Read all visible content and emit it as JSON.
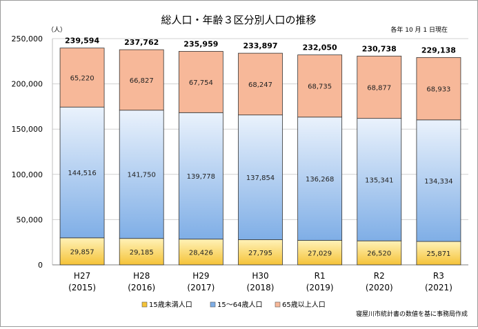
{
  "chart_data": {
    "type": "bar",
    "stacked": true,
    "title": "総人口・年齢３区分別人口の推移",
    "date_note": "各年 10 月 1 日現在",
    "y_unit": "（人）",
    "source_note": "寝屋川市統計書の数値を基に事務局作成",
    "ylim": [
      0,
      250000
    ],
    "y_ticks": [
      0,
      50000,
      100000,
      150000,
      200000,
      250000
    ],
    "y_tick_labels": [
      "0",
      "50,000",
      "100,000",
      "150,000",
      "200,000",
      "250,000"
    ],
    "grid": true,
    "legend_position": "bottom",
    "categories": [
      {
        "label": "H27",
        "year": "(2015)"
      },
      {
        "label": "H28",
        "year": "(2016)"
      },
      {
        "label": "H29",
        "year": "(2017)"
      },
      {
        "label": "H30",
        "year": "(2018)"
      },
      {
        "label": "R1",
        "year": "(2019)"
      },
      {
        "label": "R2",
        "year": "(2020)"
      },
      {
        "label": "R3",
        "year": "(2021)"
      }
    ],
    "series": [
      {
        "name": "15歳未満人口",
        "color": "#f5c338",
        "gradient": [
          "#fff2b8",
          "#f5c338"
        ],
        "values": [
          29857,
          29185,
          28426,
          27795,
          27029,
          26520,
          25871
        ],
        "labels": [
          "29,857",
          "29,185",
          "28,426",
          "27,795",
          "27,029",
          "26,520",
          "25,871"
        ]
      },
      {
        "name": "15～64歳人口",
        "color": "#7faee6",
        "gradient": [
          "#eaf2fc",
          "#7faee6"
        ],
        "values": [
          144516,
          141750,
          139778,
          137854,
          136268,
          135341,
          134334
        ],
        "labels": [
          "144,516",
          "141,750",
          "139,778",
          "137,854",
          "136,268",
          "135,341",
          "134,334"
        ]
      },
      {
        "name": "65歳以上人口",
        "color": "#f7b899",
        "gradient": [
          "#f7b899",
          "#f7b899"
        ],
        "values": [
          65220,
          66827,
          67754,
          68247,
          68735,
          68877,
          68933
        ],
        "labels": [
          "65,220",
          "66,827",
          "67,754",
          "68,247",
          "68,735",
          "68,877",
          "68,933"
        ]
      }
    ],
    "totals": [
      239594,
      237762,
      235959,
      233897,
      232050,
      230738,
      229138
    ],
    "total_labels": [
      "239,594",
      "237,762",
      "235,959",
      "233,897",
      "232,050",
      "230,738",
      "229,138"
    ]
  }
}
